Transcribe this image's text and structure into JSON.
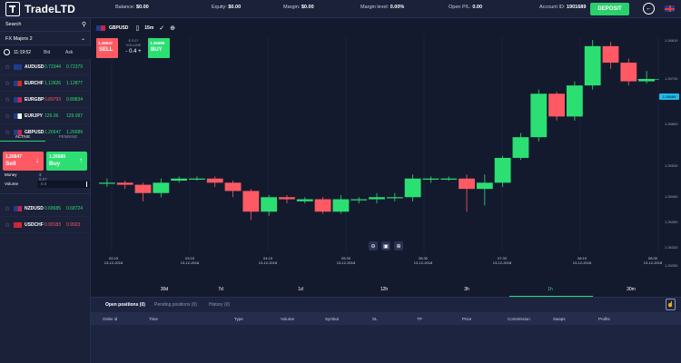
{
  "app": {
    "logo_a": "Trade",
    "logo_b": "LTD"
  },
  "topbar": {
    "balance_label": "Balance:",
    "balance_value": "$0.00",
    "equity_label": "Equity:",
    "equity_value": "$0.00",
    "margin_label": "Margin:",
    "margin_value": "$0.00",
    "margin_level_label": "Margin level:",
    "margin_level_value": "0.00%",
    "open_pl_label": "Open P/L:",
    "open_pl_value": "0.00",
    "account_label": "Account ID:",
    "account_value": "1901689",
    "deposit_label": "DEPOSIT",
    "logout_icon": "logout-icon",
    "language_flag": "uk-flag"
  },
  "sidebar": {
    "search_label": "Search",
    "group_label": "FX Majors 2",
    "time": "11:19:52",
    "bid_header": "Bid",
    "ask_header": "Ask",
    "instruments": [
      {
        "symbol": "AUDUSD",
        "bid": "0.72344",
        "ask": "0.72379",
        "bid_dir": "g",
        "ask_dir": "g"
      },
      {
        "symbol": "EURCHF",
        "bid": "1.12826",
        "ask": "1.12877",
        "bid_dir": "g",
        "ask_dir": "g"
      },
      {
        "symbol": "EURGBP",
        "bid": "0.89793",
        "ask": "0.89834",
        "bid_dir": "r",
        "ask_dir": "g"
      },
      {
        "symbol": "EURJPY",
        "bid": "129.06",
        "ask": "129.097",
        "bid_dir": "g",
        "ask_dir": "g"
      },
      {
        "symbol": "GBPUSD",
        "bid": "1.26647",
        "ask": "1.26689",
        "bid_dir": "g",
        "ask_dir": "g"
      },
      {
        "symbol": "NZDUSD",
        "bid": "0.68685",
        "ask": "0.68724",
        "bid_dir": "g",
        "ask_dir": "g"
      },
      {
        "symbol": "USDCHF",
        "bid": "0.99183",
        "ask": "0.9923",
        "bid_dir": "r",
        "ask_dir": "r"
      }
    ],
    "tab_active": "ACTIVE",
    "tab_pending": "PENDING",
    "sell_price": "1.26647",
    "sell_label": "Sell",
    "buy_price": "1.26689",
    "buy_label": "Buy",
    "money_label": "Money",
    "money_value": "$ 5.07",
    "volume_label": "Volume",
    "volume_value": "0.4"
  },
  "chart": {
    "symbol": "GBPUSD",
    "timeframe": "15m",
    "sell_price": "1.26647",
    "sell_label": "SELL",
    "buy_price": "1.26689",
    "buy_label": "BUY",
    "trade_amount": "$ 5.07",
    "volume_caption": "VOLUME",
    "volume_value": "0.4",
    "current_price_tag": "1.26669",
    "y_labels": [
      "1.26810",
      "1.26740",
      "1.26669",
      "1.26600",
      "1.26530",
      "1.26460",
      "1.26390",
      "1.26320",
      "1.26250"
    ],
    "time_ticks": [
      [
        "02:15",
        "13-12-2018"
      ],
      [
        "03:15",
        "13-12-2018"
      ],
      [
        "04:15",
        "13-12-2018"
      ],
      [
        "05:30",
        "13-12-2018"
      ],
      [
        "06:30",
        "13-12-2018"
      ],
      [
        "07:30",
        "13-12-2018"
      ],
      [
        "08:15",
        "13-12-2018"
      ],
      [
        "08:30",
        "13-12-2018"
      ]
    ],
    "timeframes": [
      "30d",
      "7d",
      "1d",
      "12h",
      "3h",
      "1h",
      "30m"
    ],
    "active_timeframe": "1h"
  },
  "chart_data": {
    "type": "candlestick",
    "series": [
      {
        "o": 0.31,
        "c": 0.31,
        "h": 0.33,
        "l": 0.29
      },
      {
        "o": 0.31,
        "c": 0.3,
        "h": 0.32,
        "l": 0.28
      },
      {
        "o": 0.3,
        "c": 0.26,
        "h": 0.31,
        "l": 0.22
      },
      {
        "o": 0.26,
        "c": 0.31,
        "h": 0.33,
        "l": 0.24
      },
      {
        "o": 0.32,
        "c": 0.33,
        "h": 0.34,
        "l": 0.31
      },
      {
        "o": 0.33,
        "c": 0.33,
        "h": 0.34,
        "l": 0.32
      },
      {
        "o": 0.33,
        "c": 0.31,
        "h": 0.34,
        "l": 0.29
      },
      {
        "o": 0.31,
        "c": 0.27,
        "h": 0.32,
        "l": 0.24
      },
      {
        "o": 0.27,
        "c": 0.17,
        "h": 0.28,
        "l": 0.13
      },
      {
        "o": 0.17,
        "c": 0.24,
        "h": 0.25,
        "l": 0.15
      },
      {
        "o": 0.24,
        "c": 0.23,
        "h": 0.25,
        "l": 0.21
      },
      {
        "o": 0.22,
        "c": 0.23,
        "h": 0.24,
        "l": 0.21
      },
      {
        "o": 0.23,
        "c": 0.17,
        "h": 0.24,
        "l": 0.16
      },
      {
        "o": 0.17,
        "c": 0.23,
        "h": 0.25,
        "l": 0.16
      },
      {
        "o": 0.23,
        "c": 0.23,
        "h": 0.24,
        "l": 0.21
      },
      {
        "o": 0.23,
        "c": 0.24,
        "h": 0.26,
        "l": 0.21
      },
      {
        "o": 0.24,
        "c": 0.24,
        "h": 0.26,
        "l": 0.22
      },
      {
        "o": 0.24,
        "c": 0.33,
        "h": 0.35,
        "l": 0.22
      },
      {
        "o": 0.33,
        "c": 0.33,
        "h": 0.34,
        "l": 0.31
      },
      {
        "o": 0.33,
        "c": 0.33,
        "h": 0.34,
        "l": 0.32
      },
      {
        "o": 0.33,
        "c": 0.28,
        "h": 0.35,
        "l": 0.17
      },
      {
        "o": 0.28,
        "c": 0.31,
        "h": 0.35,
        "l": 0.2
      },
      {
        "o": 0.31,
        "c": 0.43,
        "h": 0.44,
        "l": 0.29
      },
      {
        "o": 0.43,
        "c": 0.53,
        "h": 0.55,
        "l": 0.42
      },
      {
        "o": 0.53,
        "c": 0.74,
        "h": 0.76,
        "l": 0.51
      },
      {
        "o": 0.74,
        "c": 0.63,
        "h": 0.75,
        "l": 0.61
      },
      {
        "o": 0.63,
        "c": 0.78,
        "h": 0.8,
        "l": 0.61
      },
      {
        "o": 0.78,
        "c": 0.97,
        "h": 1.0,
        "l": 0.76
      },
      {
        "o": 0.97,
        "c": 0.89,
        "h": 0.99,
        "l": 0.86
      },
      {
        "o": 0.89,
        "c": 0.8,
        "h": 0.91,
        "l": 0.78
      },
      {
        "o": 0.8,
        "c": 0.81,
        "h": 0.85,
        "l": 0.79
      }
    ]
  },
  "bottom": {
    "tabs": [
      "Open positions (0)",
      "Pending positions (0)",
      "History (0)"
    ],
    "columns": [
      "Order id",
      "Time",
      "Type",
      "Volume",
      "Symbol",
      "SL",
      "TP",
      "Price",
      "Commission",
      "Swaps",
      "Profits"
    ]
  }
}
